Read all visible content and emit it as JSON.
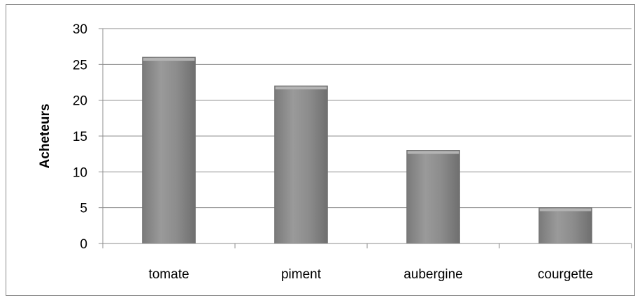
{
  "chart_data": {
    "type": "bar",
    "title": "",
    "xlabel": "",
    "ylabel": "Acheteurs",
    "categories": [
      "tomate",
      "piment",
      "aubergine",
      "courgette"
    ],
    "values": [
      26,
      22,
      13,
      5
    ],
    "ylim": [
      0,
      30
    ],
    "yticks": [
      0,
      5,
      10,
      15,
      20,
      25,
      30
    ],
    "grid": true,
    "legend": "none",
    "bar_color": "#8a8a8a",
    "bar_edge_color": "#6e6e6e"
  }
}
